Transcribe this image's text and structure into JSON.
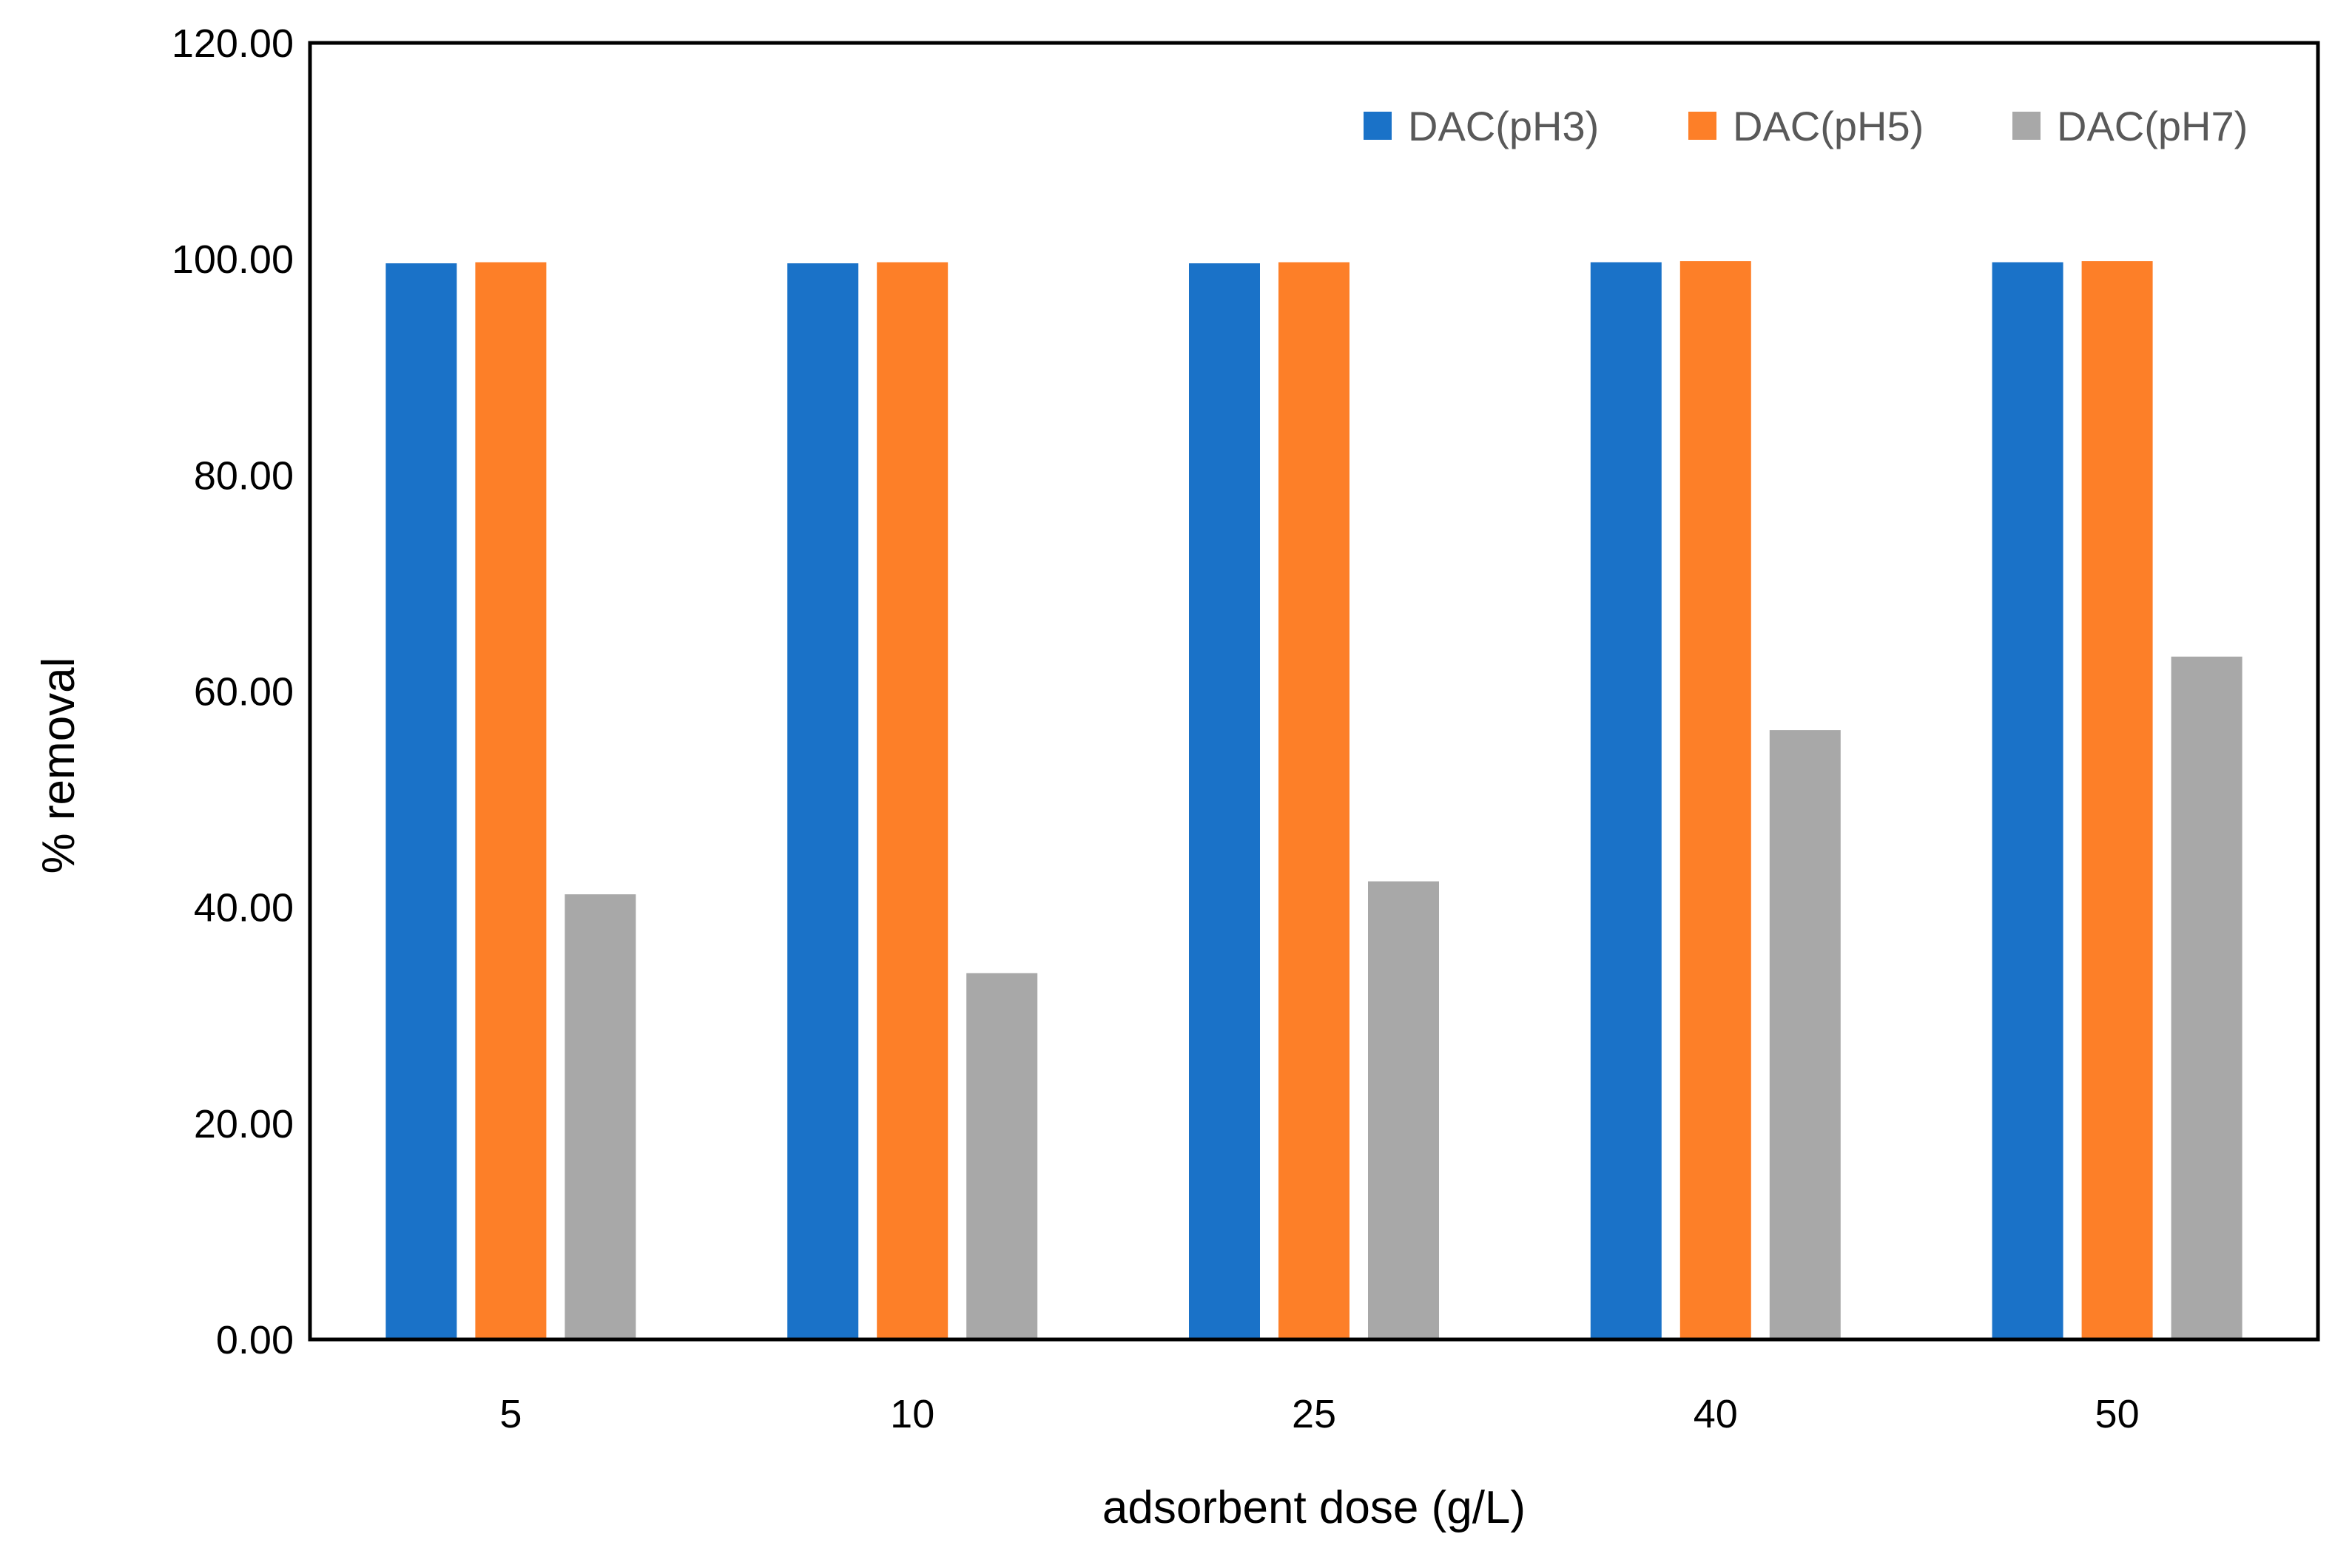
{
  "chart_data": {
    "type": "bar",
    "title": "",
    "xlabel": "adsorbent dose (g/L)",
    "ylabel": "% removal",
    "categories": [
      "5",
      "10",
      "25",
      "40",
      "50"
    ],
    "ylim": [
      0,
      120
    ],
    "yticks": [
      "0.00",
      "20.00",
      "40.00",
      "60.00",
      "80.00",
      "100.00",
      "120.00"
    ],
    "grid": false,
    "legend_position": "top-right",
    "series": [
      {
        "name": "DAC(pH3)",
        "color": "#1a72c8",
        "values": [
          99.6,
          99.6,
          99.6,
          99.7,
          99.7
        ]
      },
      {
        "name": "DAC(pH5)",
        "color": "#fd7f28",
        "values": [
          99.7,
          99.7,
          99.7,
          99.8,
          99.8
        ]
      },
      {
        "name": "DAC(pH7)",
        "color": "#a8a8a8",
        "values": [
          41.2,
          33.9,
          42.4,
          56.4,
          63.2
        ]
      }
    ]
  }
}
